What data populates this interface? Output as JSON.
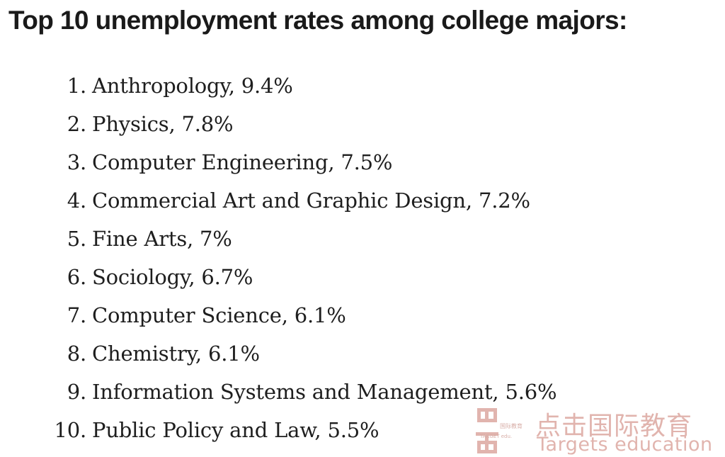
{
  "heading": "Top 10 unemployment rates among college majors:",
  "items": [
    {
      "num": "1.",
      "text": "Anthropology, 9.4%"
    },
    {
      "num": "2.",
      "text": "Physics, 7.8%"
    },
    {
      "num": "3.",
      "text": "Computer Engineering, 7.5%"
    },
    {
      "num": "4.",
      "text": "Commercial Art and Graphic Design, 7.2%"
    },
    {
      "num": "5.",
      "text": "Fine Arts, 7%"
    },
    {
      "num": "6.",
      "text": "Sociology, 6.7%"
    },
    {
      "num": "7.",
      "text": "Computer Science, 6.1%"
    },
    {
      "num": "8.",
      "text": "Chemistry, 6.1%"
    },
    {
      "num": "9.",
      "text": "Information Systems and Management, 5.6%"
    },
    {
      "num": "10.",
      "text": "Public Policy and Law, 5.5%"
    }
  ],
  "watermark": {
    "cn_title": "点击国际教育",
    "en_title": "Targets education",
    "logo_small_cn": "国际教育",
    "logo_small_en": "TARGET edu.",
    "color": "#c9786c"
  }
}
